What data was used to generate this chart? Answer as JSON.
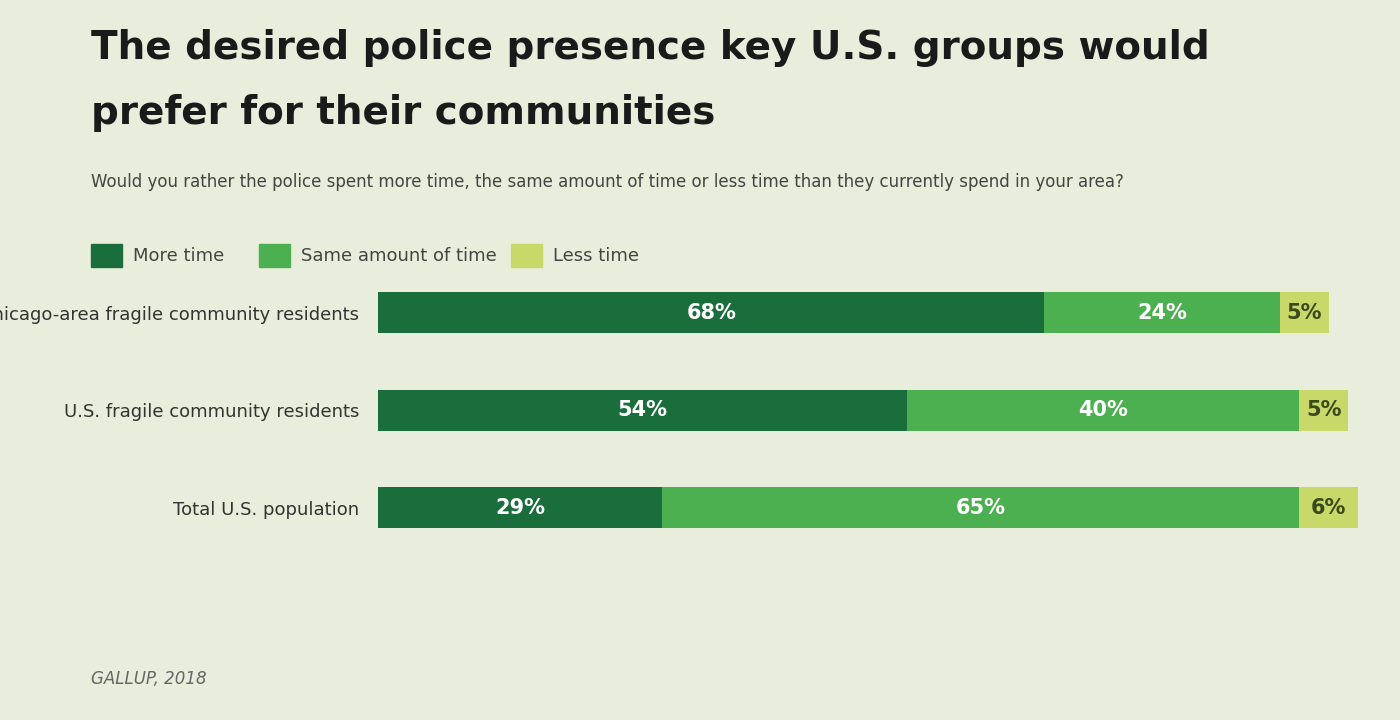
{
  "title_line1": "The desired police presence key U.S. groups would",
  "title_line2": "prefer for their communities",
  "subtitle": "Would you rather the police spent more time, the same amount of time or less time than they currently spend in your area?",
  "footer": "GALLUP, 2018",
  "categories": [
    "Chicago-area fragile community residents",
    "U.S. fragile community residents",
    "Total U.S. population"
  ],
  "more_time": [
    68,
    54,
    29
  ],
  "same_time": [
    24,
    40,
    65
  ],
  "less_time": [
    5,
    5,
    6
  ],
  "color_more": "#1a6e3c",
  "color_same": "#4caf50",
  "color_less": "#c8d96a",
  "background_color": "#e8eddc",
  "legend_labels": [
    "More time",
    "Same amount of time",
    "Less time"
  ],
  "title_fontsize": 28,
  "subtitle_fontsize": 12,
  "label_fontsize": 13,
  "bar_label_fontsize": 15,
  "footer_fontsize": 12
}
